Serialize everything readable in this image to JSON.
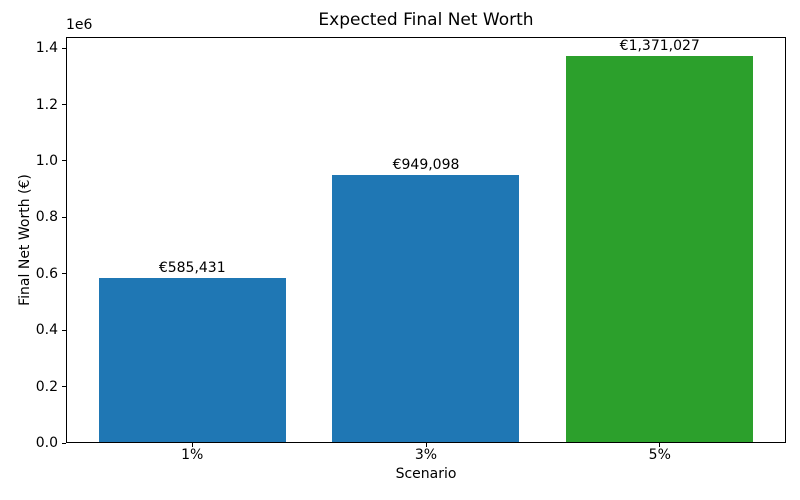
{
  "chart_data": {
    "type": "bar",
    "title": "Expected Final Net Worth",
    "xlabel": "Scenario",
    "ylabel": "Final Net Worth (€)",
    "y_offset_label": "1e6",
    "categories": [
      "1%",
      "3%",
      "5%"
    ],
    "values": [
      585431,
      949098,
      1371027
    ],
    "bar_labels": [
      "€585,431",
      "€949,098",
      "€1,371,027"
    ],
    "bar_colors": [
      "#1f77b4",
      "#1f77b4",
      "#2ca02c"
    ],
    "ylim": [
      0,
      1439578
    ],
    "xlim": [
      -0.54,
      2.54
    ],
    "bar_width": 0.8,
    "y_tick_values": [
      0,
      200000,
      400000,
      600000,
      800000,
      1000000,
      1200000,
      1400000
    ],
    "y_tick_labels": [
      "0.0",
      "0.2",
      "0.4",
      "0.6",
      "0.8",
      "1.0",
      "1.2",
      "1.4"
    ],
    "grid": false,
    "legend_position": "none",
    "background_color": "#ffffff",
    "frame_color": "#000000",
    "text_color": "#000000"
  }
}
